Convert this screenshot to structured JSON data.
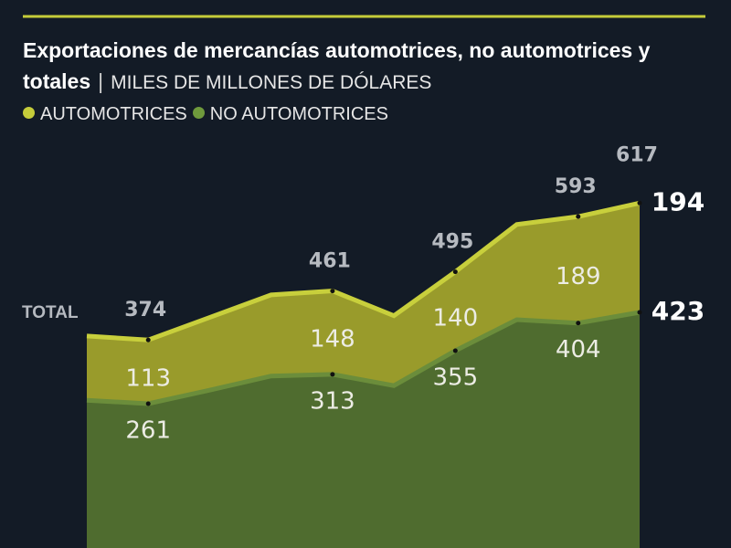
{
  "chart_data": {
    "type": "stacked-area",
    "subtitle": "Exportaciones de mercancías automotrices, no automotrices y totales",
    "units": "MILES DE MILLONES DE DÓLARES",
    "total_label": "TOTAL",
    "categories": [
      null,
      null,
      null,
      null,
      null,
      null,
      null,
      null,
      null,
      null
    ],
    "series": [
      {
        "name": "NO AUTOMOTRICES",
        "color": "#4f6c2f",
        "line_color": "#6b8d3b",
        "legend_color": "#6f9a3c",
        "values": [
          267,
          261,
          285,
          310,
          313,
          293,
          355,
          410,
          404,
          423
        ]
      },
      {
        "name": "AUTOMOTRICES",
        "color": "#999b2b",
        "line_color": "#c8cf3c",
        "legend_color": "#c5cc3a",
        "values": [
          114,
          113,
          129,
          144,
          148,
          124,
          140,
          169,
          189,
          194
        ]
      }
    ],
    "totals": [
      null,
      374,
      null,
      null,
      461,
      null,
      495,
      null,
      593,
      617
    ]
  }
}
